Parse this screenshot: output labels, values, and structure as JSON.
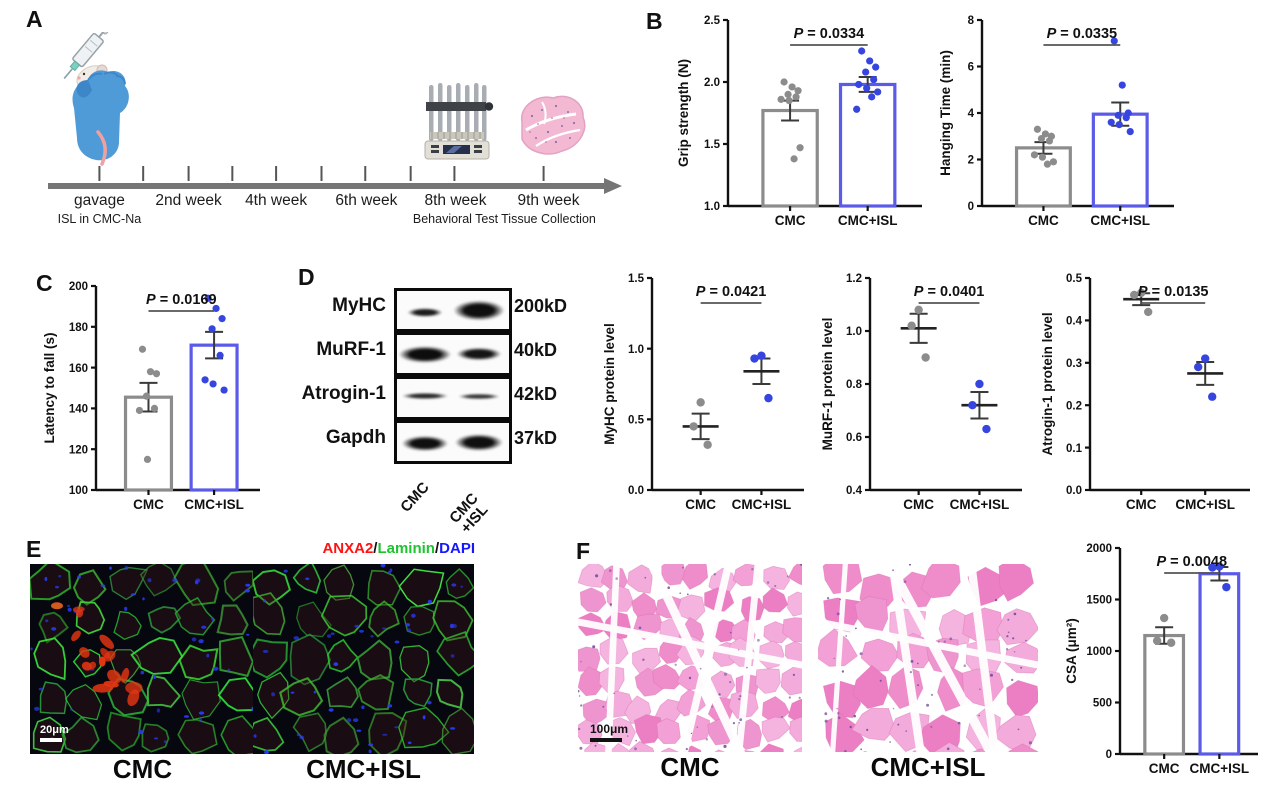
{
  "panels": {
    "a": {
      "letter": "A",
      "timeline": [
        {
          "title": "gavage",
          "subtitle": "ISL in CMC-Na"
        },
        {
          "title": "2nd week",
          "subtitle": ""
        },
        {
          "title": "4th week",
          "subtitle": ""
        },
        {
          "title": "6th week",
          "subtitle": ""
        },
        {
          "title": "8th week",
          "subtitle": "Behavioral Test"
        },
        {
          "title": "9th week",
          "subtitle": "Tissue Collection"
        }
      ],
      "icons": [
        "syringe-mouse-icon",
        "grip-test-device-icon",
        "muscle-tissue-icon"
      ]
    },
    "b": {
      "letter": "B"
    },
    "c": {
      "letter": "C"
    },
    "d": {
      "letter": "D",
      "blots": [
        {
          "protein": "MyHC",
          "size": "200kD"
        },
        {
          "protein": "MuRF-1",
          "size": "40kD"
        },
        {
          "protein": "Atrogin-1",
          "size": "42kD"
        },
        {
          "protein": "Gapdh",
          "size": "37kD"
        }
      ],
      "lanes": [
        {
          "line1": "CMC",
          "line2": ""
        },
        {
          "line1": "CMC",
          "line2": "+ISL"
        }
      ]
    },
    "e": {
      "letter": "E",
      "legend": [
        {
          "text": "ANXA2",
          "color": "#FF1212"
        },
        {
          "text": "/",
          "color": "#111111"
        },
        {
          "text": "Laminin",
          "color": "#1FC32F"
        },
        {
          "text": "/",
          "color": "#111111"
        },
        {
          "text": "DAPI",
          "color": "#1717FF"
        }
      ],
      "images": [
        {
          "caption": "CMC",
          "scale_bar": "20μm"
        },
        {
          "caption": "CMC+ISL",
          "scale_bar": ""
        }
      ]
    },
    "f": {
      "letter": "F",
      "images": [
        {
          "caption": "CMC",
          "scale_bar": "100μm"
        },
        {
          "caption": "CMC+ISL",
          "scale_bar": ""
        }
      ]
    }
  },
  "colors": {
    "cmc_bar": "#8C8C8C",
    "isl_bar": "#5B5BE8",
    "cmc_point": "#8C8C8C",
    "isl_point": "#3644E0",
    "error_bar": "#3A3A3A"
  },
  "chart_data": [
    {
      "id": "grip_strength",
      "type": "bar",
      "title": "",
      "ylabel": "Grip strength (N)",
      "p_value": "0.0334",
      "ylim": [
        1.0,
        2.5
      ],
      "yticks": [
        1.0,
        1.5,
        2.0,
        2.5
      ],
      "ydec": 1,
      "categories": [
        "CMC",
        "CMC+ISL"
      ],
      "series": [
        {
          "name": "CMC",
          "mean": 1.77,
          "sem": 0.08,
          "points": [
            2.0,
            1.96,
            1.93,
            1.9,
            1.88,
            1.86,
            1.85,
            1.47,
            1.38
          ],
          "color": "#8C8C8C",
          "point_color": "#8C8C8C"
        },
        {
          "name": "CMC+ISL",
          "mean": 1.98,
          "sem": 0.06,
          "points": [
            2.25,
            2.17,
            2.12,
            2.08,
            2.02,
            1.98,
            1.95,
            1.92,
            1.88,
            1.78
          ],
          "color": "#5B5BE8",
          "point_color": "#3644E0"
        }
      ]
    },
    {
      "id": "hanging_time",
      "type": "bar",
      "title": "",
      "ylabel": "Hanging Time (min)",
      "p_value": "0.0335",
      "ylim": [
        0,
        8
      ],
      "yticks": [
        0,
        2,
        4,
        6,
        8
      ],
      "ydec": 0,
      "categories": [
        "CMC",
        "CMC+ISL"
      ],
      "series": [
        {
          "name": "CMC",
          "mean": 2.5,
          "sem": 0.25,
          "points": [
            3.3,
            3.1,
            3.0,
            2.9,
            2.8,
            2.2,
            2.1,
            1.9,
            1.8
          ],
          "color": "#8C8C8C",
          "point_color": "#8C8C8C"
        },
        {
          "name": "CMC+ISL",
          "mean": 3.95,
          "sem": 0.5,
          "points": [
            7.1,
            5.2,
            4.0,
            3.9,
            3.8,
            3.6,
            3.5,
            3.2
          ],
          "color": "#5B5BE8",
          "point_color": "#3644E0"
        }
      ]
    },
    {
      "id": "latency",
      "type": "bar",
      "title": "",
      "ylabel": "Latency to fall (s)",
      "p_value": "0.0169",
      "ylim": [
        100,
        200
      ],
      "yticks": [
        100,
        120,
        140,
        160,
        180,
        200
      ],
      "ydec": 0,
      "categories": [
        "CMC",
        "CMC+ISL"
      ],
      "series": [
        {
          "name": "CMC",
          "mean": 145.5,
          "sem": 7,
          "points": [
            169,
            158,
            157,
            146,
            140,
            139,
            115
          ],
          "color": "#8C8C8C",
          "point_color": "#8C8C8C"
        },
        {
          "name": "CMC+ISL",
          "mean": 171,
          "sem": 6.5,
          "points": [
            194,
            189,
            184,
            179,
            166,
            154,
            152,
            149
          ],
          "color": "#5B5BE8",
          "point_color": "#3644E0"
        }
      ]
    },
    {
      "id": "myhc",
      "type": "scatter",
      "title": "",
      "ylabel": "MyHC protein level",
      "p_value": "0.0421",
      "ylim": [
        0.0,
        1.5
      ],
      "yticks": [
        0.0,
        0.5,
        1.0,
        1.5
      ],
      "ydec": 1,
      "categories": [
        "CMC",
        "CMC+ISL"
      ],
      "series": [
        {
          "name": "CMC",
          "mean": 0.45,
          "sem": 0.09,
          "points": [
            0.62,
            0.45,
            0.32
          ],
          "color": "#8C8C8C",
          "point_color": "#8C8C8C"
        },
        {
          "name": "CMC+ISL",
          "mean": 0.84,
          "sem": 0.09,
          "points": [
            0.95,
            0.93,
            0.65
          ],
          "color": "#5B5BE8",
          "point_color": "#3644E0"
        }
      ]
    },
    {
      "id": "murf1",
      "type": "scatter",
      "title": "",
      "ylabel": "MuRF-1 protein level",
      "p_value": "0.0401",
      "ylim": [
        0.4,
        1.2
      ],
      "yticks": [
        0.4,
        0.6,
        0.8,
        1.0,
        1.2
      ],
      "ydec": 1,
      "categories": [
        "CMC",
        "CMC+ISL"
      ],
      "series": [
        {
          "name": "CMC",
          "mean": 1.01,
          "sem": 0.055,
          "points": [
            1.08,
            1.02,
            0.9
          ],
          "color": "#8C8C8C",
          "point_color": "#8C8C8C"
        },
        {
          "name": "CMC+ISL",
          "mean": 0.72,
          "sem": 0.05,
          "points": [
            0.8,
            0.72,
            0.63
          ],
          "color": "#5B5BE8",
          "point_color": "#3644E0"
        }
      ]
    },
    {
      "id": "atrogin",
      "type": "scatter",
      "title": "",
      "ylabel": "Atrogin-1 protein level",
      "p_value": "0.0135",
      "ylim": [
        0.0,
        0.5
      ],
      "yticks": [
        0.0,
        0.1,
        0.2,
        0.3,
        0.4,
        0.5
      ],
      "ydec": 1,
      "categories": [
        "CMC",
        "CMC+ISL"
      ],
      "series": [
        {
          "name": "CMC",
          "mean": 0.45,
          "sem": 0.014,
          "points": [
            0.465,
            0.46,
            0.42
          ],
          "color": "#8C8C8C",
          "point_color": "#8C8C8C"
        },
        {
          "name": "CMC+ISL",
          "mean": 0.275,
          "sem": 0.027,
          "points": [
            0.31,
            0.29,
            0.22
          ],
          "color": "#5B5BE8",
          "point_color": "#3644E0"
        }
      ]
    },
    {
      "id": "csa",
      "type": "bar",
      "title": "",
      "ylabel": "CSA (μm²)",
      "p_value": "0.0048",
      "ylim": [
        0,
        2000
      ],
      "yticks": [
        0,
        500,
        1000,
        1500,
        2000
      ],
      "ydec": 0,
      "categories": [
        "CMC",
        "CMC+ISL"
      ],
      "series": [
        {
          "name": "CMC",
          "mean": 1150,
          "sem": 80,
          "points": [
            1320,
            1100,
            1080
          ],
          "color": "#8C8C8C",
          "point_color": "#8C8C8C"
        },
        {
          "name": "CMC+ISL",
          "mean": 1750,
          "sem": 65,
          "points": [
            1820,
            1810,
            1620
          ],
          "color": "#5B5BE8",
          "point_color": "#3644E0"
        }
      ]
    }
  ]
}
